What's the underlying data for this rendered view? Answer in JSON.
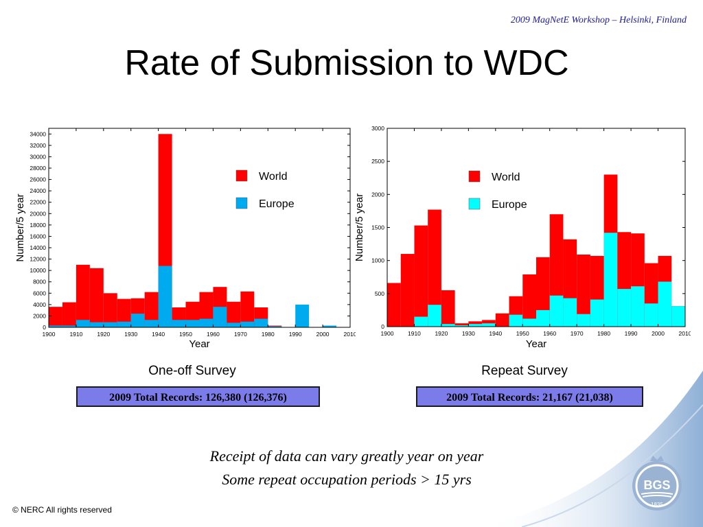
{
  "header": {
    "note": "2009 MagNetE Workshop – Helsinki, Finland"
  },
  "title": "Rate of Submission to WDC",
  "colors": {
    "world": "#ff0000",
    "europe_left": "#00aaee",
    "europe_right": "#00ffff",
    "records_box": "#7b7bea",
    "header_text": "#1a1aa0"
  },
  "chart_data": [
    {
      "type": "bar",
      "stacked": "overlay",
      "xlabel": "Year",
      "ylabel": "Number/5 year",
      "xlim": [
        1900,
        2010
      ],
      "ylim": [
        0,
        35000
      ],
      "xticks": [
        1900,
        1910,
        1920,
        1930,
        1940,
        1950,
        1960,
        1970,
        1980,
        1990,
        2000,
        2010
      ],
      "yticks": [
        0,
        2000,
        4000,
        6000,
        8000,
        10000,
        12000,
        14000,
        16000,
        18000,
        20000,
        22000,
        24000,
        26000,
        28000,
        30000,
        32000,
        34000
      ],
      "bin_width": 5,
      "x": [
        1900,
        1905,
        1910,
        1915,
        1920,
        1925,
        1930,
        1935,
        1940,
        1945,
        1950,
        1955,
        1960,
        1965,
        1970,
        1975,
        1980,
        1985,
        1990,
        1995,
        2000
      ],
      "series": [
        {
          "name": "World",
          "values": [
            3600,
            4400,
            11000,
            10400,
            6000,
            5000,
            5100,
            6200,
            34000,
            3500,
            4500,
            6200,
            7100,
            4500,
            6300,
            3500,
            300,
            0,
            0,
            0,
            300
          ]
        },
        {
          "name": "Europe",
          "values": [
            300,
            300,
            1300,
            900,
            900,
            1000,
            2400,
            1300,
            10800,
            1300,
            1300,
            1500,
            3600,
            800,
            1000,
            1500,
            200,
            0,
            4000,
            0,
            300
          ]
        }
      ],
      "legend": "top-right",
      "grid": false
    },
    {
      "type": "bar",
      "stacked": "overlay",
      "xlabel": "Year",
      "ylabel": "Number/5 year",
      "xlim": [
        1900,
        2010
      ],
      "ylim": [
        0,
        3000
      ],
      "xticks": [
        1900,
        1910,
        1920,
        1930,
        1940,
        1950,
        1960,
        1970,
        1980,
        1990,
        2000,
        2010
      ],
      "yticks": [
        0,
        500,
        1000,
        1500,
        2000,
        2500,
        3000
      ],
      "bin_width": 5,
      "x": [
        1900,
        1905,
        1910,
        1915,
        1920,
        1925,
        1930,
        1935,
        1940,
        1945,
        1950,
        1955,
        1960,
        1965,
        1970,
        1975,
        1980,
        1985,
        1990,
        1995,
        2000,
        2005
      ],
      "series": [
        {
          "name": "World",
          "values": [
            660,
            1100,
            1530,
            1770,
            550,
            50,
            80,
            100,
            200,
            460,
            790,
            1050,
            1700,
            1320,
            1090,
            1070,
            2300,
            1430,
            1410,
            960,
            1070,
            310
          ]
        },
        {
          "name": "Europe",
          "values": [
            0,
            0,
            150,
            330,
            40,
            20,
            40,
            50,
            0,
            180,
            120,
            250,
            470,
            430,
            190,
            410,
            1420,
            570,
            610,
            350,
            680,
            310
          ]
        }
      ],
      "legend": "top-right",
      "grid": false
    }
  ],
  "surveys": [
    {
      "label": "One-off Survey",
      "records": "2009 Total Records: 126,380 (126,376)"
    },
    {
      "label": "Repeat Survey",
      "records": "2009 Total Records: 21,167 (21,038)"
    }
  ],
  "footnotes": [
    "Receipt of data can vary greatly year on year",
    "Some repeat occupation periods > 15 yrs"
  ],
  "copyright": "© NERC All rights reserved",
  "logo": {
    "text": "BGS",
    "year": "1835"
  }
}
